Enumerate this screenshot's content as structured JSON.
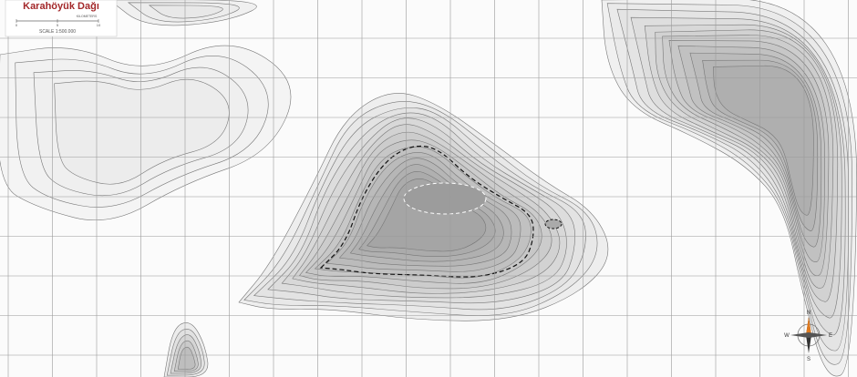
{
  "title": "Karahöyük Dağı",
  "scale_bar": {
    "unit": "KILOMETERS",
    "ticks": [
      "0",
      "5",
      "10"
    ]
  },
  "scale": "SCALE 1:500.000",
  "compass": {
    "n": "N",
    "e": "E",
    "s": "S",
    "w": "W"
  }
}
